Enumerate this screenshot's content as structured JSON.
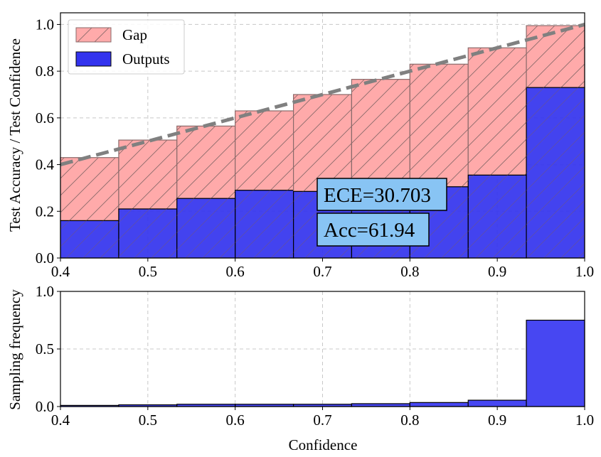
{
  "chart_data": [
    {
      "type": "bar",
      "subtype": "reliability-diagram",
      "bins": [
        {
          "left": 0.4,
          "right": 0.4667
        },
        {
          "left": 0.4667,
          "right": 0.5333
        },
        {
          "left": 0.5333,
          "right": 0.6
        },
        {
          "left": 0.6,
          "right": 0.6667
        },
        {
          "left": 0.6667,
          "right": 0.7333
        },
        {
          "left": 0.7333,
          "right": 0.8
        },
        {
          "left": 0.8,
          "right": 0.8667
        },
        {
          "left": 0.8667,
          "right": 0.9333
        },
        {
          "left": 0.9333,
          "right": 1.0
        }
      ],
      "series": [
        {
          "name": "Outputs",
          "color": "#3333ee",
          "values": [
            0.16,
            0.21,
            0.255,
            0.29,
            0.285,
            0.295,
            0.305,
            0.355,
            0.73
          ]
        },
        {
          "name": "Gap",
          "color": "#ffaaaa",
          "top_values": [
            0.43,
            0.505,
            0.565,
            0.63,
            0.7,
            0.765,
            0.83,
            0.9,
            0.995
          ]
        }
      ],
      "reference_line": {
        "x": [
          0.4,
          1.0
        ],
        "y": [
          0.4,
          1.0
        ],
        "color": "#808080"
      },
      "legend": {
        "position": "top-left",
        "entries": [
          "Gap",
          "Outputs"
        ]
      },
      "annotations": [
        "ECE=30.703",
        "Acc=61.94"
      ],
      "annotation_color": "#88c4f4",
      "xlabel": "",
      "ylabel": "Test Accuracy / Test Confidence",
      "xlim": [
        0.4,
        1.0
      ],
      "ylim": [
        0.0,
        1.05
      ],
      "xticks": [
        0.4,
        0.5,
        0.6,
        0.7,
        0.8,
        0.9,
        1.0
      ],
      "xtick_labels": [
        "0.4",
        "0.5",
        "0.6",
        "0.7",
        "0.8",
        "0.9",
        "1.0"
      ],
      "yticks": [
        0.0,
        0.2,
        0.4,
        0.6,
        0.8,
        1.0
      ],
      "ytick_labels": [
        "0.0",
        "0.2",
        "0.4",
        "0.6",
        "0.8",
        "1.0"
      ],
      "grid": true
    },
    {
      "type": "bar",
      "subtype": "histogram",
      "series": [
        {
          "name": "Sampling frequency",
          "color": "#4747f2",
          "values": [
            0.01,
            0.015,
            0.02,
            0.02,
            0.02,
            0.025,
            0.035,
            0.055,
            0.75
          ]
        }
      ],
      "xlabel": "Confidence",
      "ylabel": "Sampling frequency",
      "xlim": [
        0.4,
        1.0
      ],
      "ylim": [
        0.0,
        1.0
      ],
      "xticks": [
        0.4,
        0.5,
        0.6,
        0.7,
        0.8,
        0.9,
        1.0
      ],
      "xtick_labels": [
        "0.4",
        "0.5",
        "0.6",
        "0.7",
        "0.8",
        "0.9",
        "1.0"
      ],
      "yticks": [
        0.0,
        0.5,
        1.0
      ],
      "ytick_labels": [
        "0.0",
        "0.5",
        "1.0"
      ],
      "grid": true
    }
  ]
}
